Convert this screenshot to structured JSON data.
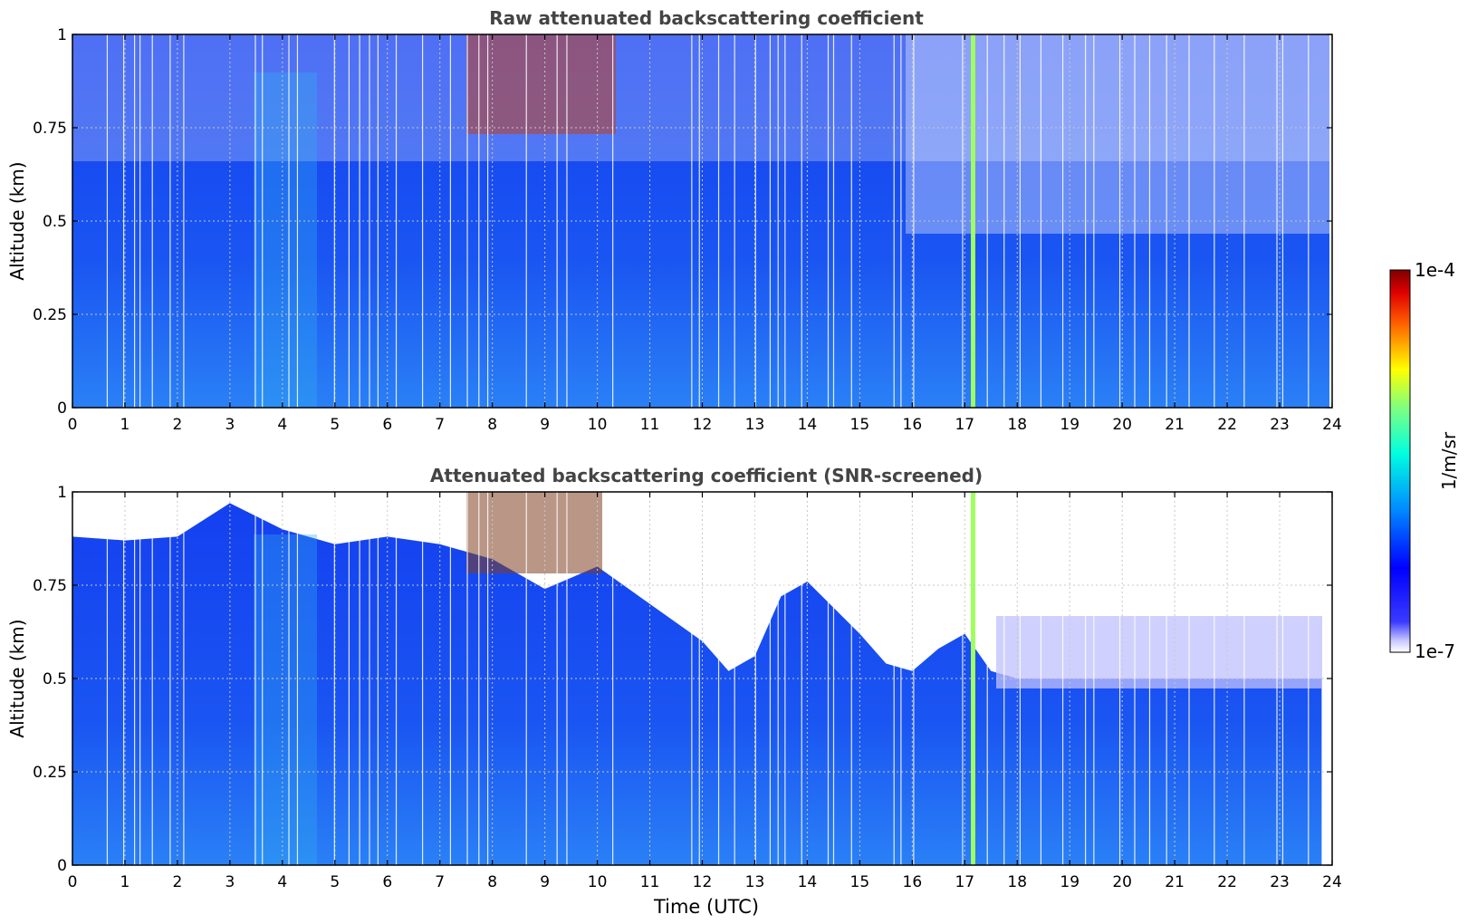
{
  "chart_data": [
    {
      "type": "heatmap",
      "title": "Raw attenuated backscattering coefficient",
      "xlabel": "",
      "ylabel": "Altitude (km)",
      "xlim": [
        0,
        24
      ],
      "ylim": [
        0,
        1
      ],
      "x_ticks": [
        "0",
        "1",
        "2",
        "3",
        "4",
        "5",
        "6",
        "7",
        "8",
        "9",
        "10",
        "11",
        "12",
        "13",
        "14",
        "15",
        "16",
        "17",
        "18",
        "19",
        "20",
        "21",
        "22",
        "23",
        "24"
      ],
      "y_ticks": [
        "0",
        "0.25",
        "0.5",
        "0.75",
        "1"
      ],
      "grid": true,
      "data_end_hour": 23.8,
      "features": {
        "low_level_blue_layer_km": [
          0,
          0.5
        ],
        "aerosol_high_values_hours": [
          7.4,
          10.3
        ],
        "aerosol_high_values_altitude_km": [
          0.73,
          1.0
        ],
        "vertical_spike_hour": 17.0
      }
    },
    {
      "type": "heatmap",
      "title": "Attenuated backscattering coefficient (SNR-screened)",
      "xlabel": "Time (UTC)",
      "ylabel": "Altitude (km)",
      "xlim": [
        0,
        24
      ],
      "ylim": [
        0,
        1
      ],
      "x_ticks": [
        "0",
        "1",
        "2",
        "3",
        "4",
        "5",
        "6",
        "7",
        "8",
        "9",
        "10",
        "11",
        "12",
        "13",
        "14",
        "15",
        "16",
        "17",
        "18",
        "19",
        "20",
        "21",
        "22",
        "23",
        "24"
      ],
      "y_ticks": [
        "0",
        "0.25",
        "0.5",
        "0.75",
        "1"
      ],
      "grid": true,
      "data_end_hour": 23.8,
      "screened_top_km": [
        [
          0,
          0.88
        ],
        [
          1,
          0.87
        ],
        [
          2,
          0.88
        ],
        [
          3,
          0.97
        ],
        [
          4,
          0.9
        ],
        [
          5,
          0.86
        ],
        [
          6,
          0.88
        ],
        [
          7,
          0.86
        ],
        [
          8,
          0.82
        ],
        [
          9,
          0.74
        ],
        [
          10,
          0.8
        ],
        [
          11,
          0.7
        ],
        [
          12,
          0.6
        ],
        [
          12.5,
          0.52
        ],
        [
          13,
          0.56
        ],
        [
          13.5,
          0.72
        ],
        [
          14,
          0.76
        ],
        [
          15,
          0.62
        ],
        [
          15.5,
          0.54
        ],
        [
          16,
          0.52
        ],
        [
          16.5,
          0.58
        ],
        [
          17,
          0.62
        ],
        [
          17.5,
          0.52
        ],
        [
          18,
          0.5
        ],
        [
          19,
          0.5
        ],
        [
          20,
          0.5
        ],
        [
          21,
          0.5
        ],
        [
          22,
          0.5
        ],
        [
          23,
          0.5
        ],
        [
          23.8,
          0.5
        ]
      ]
    }
  ],
  "colorbar": {
    "max_label": "1e-4",
    "min_label": "1e-7",
    "unit_label": "1/m/sr",
    "colormap": "jet"
  },
  "colors": {
    "background_blue": "#1a4cf0",
    "light_blue": "#2f8af5",
    "white": "#ffffff",
    "axis": "#000000",
    "title_text": "#444444"
  }
}
